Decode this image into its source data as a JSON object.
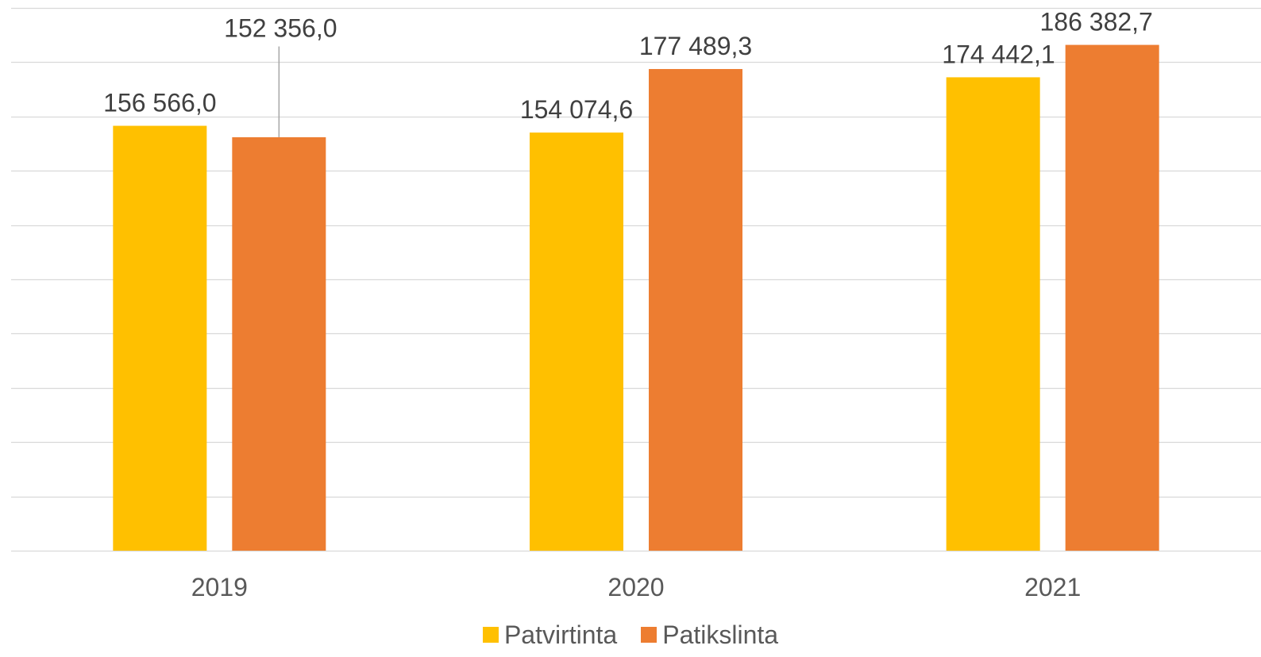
{
  "chart_data": {
    "type": "bar",
    "categories": [
      "2019",
      "2020",
      "2021"
    ],
    "series": [
      {
        "name": "Patvirtinta",
        "values": [
          156566.0,
          154074.6,
          174442.1
        ],
        "labels": [
          "156 566,0",
          "154 074,6",
          "174 442,1"
        ],
        "color": "#FFC000"
      },
      {
        "name": "Patikslinta",
        "values": [
          152356.0,
          177489.3,
          186382.7
        ],
        "labels": [
          "152 356,0",
          "177 489,3",
          "186 382,7"
        ],
        "color": "#ED7D31"
      }
    ],
    "ylim": [
      0,
      200000
    ],
    "y_tick_step": 20000,
    "y_tick_labels_visible": false,
    "grid": true,
    "legend": "bottom",
    "colors": {
      "gridline": "#D9D9D9",
      "label_text": "#404040",
      "tick_text": "#595959",
      "leader_line": "#A6A6A6"
    }
  }
}
